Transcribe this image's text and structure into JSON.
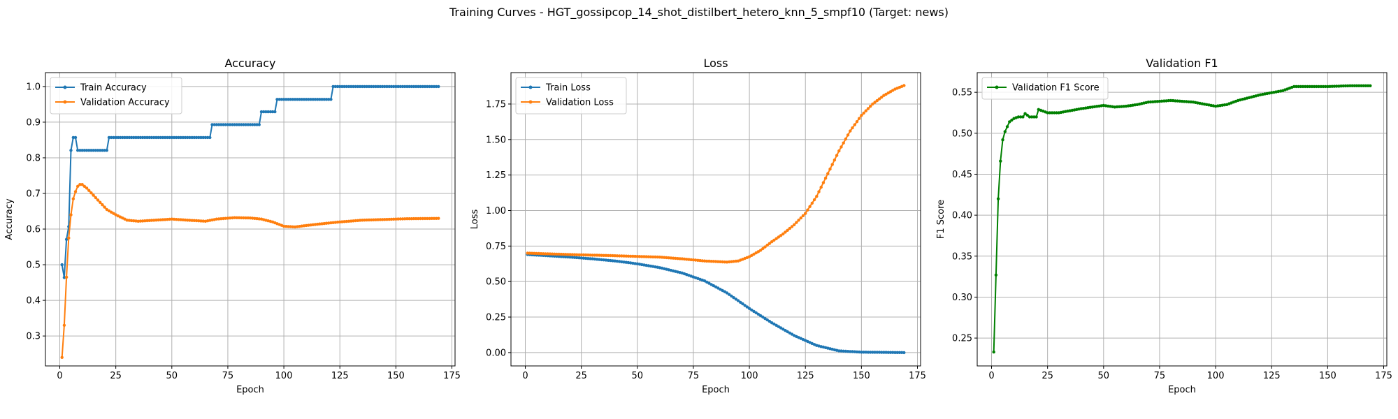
{
  "suptitle": "Training Curves - HGT_gossipcop_14_shot_distilbert_hetero_knn_5_smpf10 (Target: news)",
  "colors": {
    "blue": "#1f77b4",
    "orange": "#ff7f0e",
    "green": "#008000",
    "grid": "#b0b0b0"
  },
  "chart_data": [
    {
      "type": "line",
      "title": "Accuracy",
      "xlabel": "Epoch",
      "ylabel": "Accuracy",
      "xlim": [
        -6.4,
        176.4
      ],
      "ylim": [
        0.216,
        1.039
      ],
      "xticks": [
        0,
        25,
        50,
        75,
        100,
        125,
        150,
        175
      ],
      "yticks": [
        0.3,
        0.4,
        0.5,
        0.6,
        0.7,
        0.8,
        0.9,
        1.0
      ],
      "ytick_labels": [
        "0.3",
        "0.4",
        "0.5",
        "0.6",
        "0.7",
        "0.8",
        "0.9",
        "1.0"
      ],
      "grid": true,
      "legend": "upper left",
      "series": [
        {
          "name": "Train Accuracy",
          "color": "#1f77b4",
          "segments": [
            [
              1,
              0.5
            ],
            [
              2,
              0.464
            ],
            [
              3,
              0.571
            ],
            [
              4,
              0.607
            ],
            [
              5,
              0.821
            ],
            [
              6,
              0.857
            ],
            [
              7,
              0.857
            ],
            [
              8,
              0.821
            ],
            [
              21,
              0.821
            ],
            [
              22,
              0.857
            ],
            [
              67,
              0.857
            ],
            [
              68,
              0.893
            ],
            [
              89,
              0.893
            ],
            [
              90,
              0.929
            ],
            [
              96,
              0.929
            ],
            [
              97,
              0.964
            ],
            [
              121,
              0.964
            ],
            [
              122,
              1.0
            ],
            [
              169,
              1.0
            ]
          ]
        },
        {
          "name": "Validation Accuracy",
          "color": "#ff7f0e",
          "segments": [
            [
              1,
              0.24
            ],
            [
              2,
              0.33
            ],
            [
              3,
              0.465
            ],
            [
              4,
              0.575
            ],
            [
              5,
              0.64
            ],
            [
              6,
              0.685
            ],
            [
              7,
              0.705
            ],
            [
              8,
              0.72
            ],
            [
              9,
              0.725
            ],
            [
              10,
              0.725
            ],
            [
              12,
              0.715
            ],
            [
              15,
              0.695
            ],
            [
              18,
              0.675
            ],
            [
              21,
              0.655
            ],
            [
              25,
              0.64
            ],
            [
              30,
              0.625
            ],
            [
              35,
              0.622
            ],
            [
              40,
              0.624
            ],
            [
              50,
              0.628
            ],
            [
              57,
              0.625
            ],
            [
              65,
              0.622
            ],
            [
              70,
              0.628
            ],
            [
              78,
              0.632
            ],
            [
              85,
              0.631
            ],
            [
              90,
              0.628
            ],
            [
              95,
              0.62
            ],
            [
              100,
              0.608
            ],
            [
              105,
              0.606
            ],
            [
              110,
              0.61
            ],
            [
              117,
              0.615
            ],
            [
              125,
              0.62
            ],
            [
              135,
              0.625
            ],
            [
              145,
              0.627
            ],
            [
              155,
              0.629
            ],
            [
              169,
              0.63
            ]
          ]
        }
      ]
    },
    {
      "type": "line",
      "title": "Loss",
      "xlabel": "Epoch",
      "ylabel": "Loss",
      "xlim": [
        -6.4,
        176.4
      ],
      "ylim": [
        -0.094,
        1.971
      ],
      "xticks": [
        0,
        25,
        50,
        75,
        100,
        125,
        150,
        175
      ],
      "yticks": [
        0.0,
        0.25,
        0.5,
        0.75,
        1.0,
        1.25,
        1.5,
        1.75
      ],
      "ytick_labels": [
        "0.00",
        "0.25",
        "0.50",
        "0.75",
        "1.00",
        "1.25",
        "1.50",
        "1.75"
      ],
      "grid": true,
      "legend": "upper left",
      "series": [
        {
          "name": "Train Loss",
          "color": "#1f77b4",
          "segments": [
            [
              1,
              0.69
            ],
            [
              10,
              0.682
            ],
            [
              20,
              0.672
            ],
            [
              30,
              0.66
            ],
            [
              40,
              0.645
            ],
            [
              50,
              0.625
            ],
            [
              60,
              0.598
            ],
            [
              70,
              0.56
            ],
            [
              80,
              0.505
            ],
            [
              90,
              0.42
            ],
            [
              100,
              0.31
            ],
            [
              110,
              0.21
            ],
            [
              120,
              0.12
            ],
            [
              130,
              0.05
            ],
            [
              140,
              0.012
            ],
            [
              150,
              0.003
            ],
            [
              169,
              0.0
            ]
          ]
        },
        {
          "name": "Validation Loss",
          "color": "#ff7f0e",
          "segments": [
            [
              1,
              0.7
            ],
            [
              20,
              0.69
            ],
            [
              40,
              0.682
            ],
            [
              60,
              0.672
            ],
            [
              70,
              0.66
            ],
            [
              80,
              0.645
            ],
            [
              90,
              0.637
            ],
            [
              95,
              0.645
            ],
            [
              100,
              0.675
            ],
            [
              105,
              0.72
            ],
            [
              110,
              0.78
            ],
            [
              115,
              0.835
            ],
            [
              120,
              0.9
            ],
            [
              125,
              0.98
            ],
            [
              130,
              1.1
            ],
            [
              135,
              1.26
            ],
            [
              140,
              1.42
            ],
            [
              145,
              1.56
            ],
            [
              150,
              1.67
            ],
            [
              155,
              1.75
            ],
            [
              160,
              1.81
            ],
            [
              165,
              1.855
            ],
            [
              169,
              1.88
            ]
          ]
        }
      ]
    },
    {
      "type": "line",
      "title": "Validation F1",
      "xlabel": "Epoch",
      "ylabel": "F1 Score",
      "xlim": [
        -6.4,
        176.4
      ],
      "ylim": [
        0.216,
        0.574
      ],
      "xticks": [
        0,
        25,
        50,
        75,
        100,
        125,
        150,
        175
      ],
      "yticks": [
        0.25,
        0.3,
        0.35,
        0.4,
        0.45,
        0.5,
        0.55
      ],
      "ytick_labels": [
        "0.25",
        "0.30",
        "0.35",
        "0.40",
        "0.45",
        "0.50",
        "0.55"
      ],
      "grid": true,
      "legend": "upper left",
      "series": [
        {
          "name": "Validation F1 Score",
          "color": "#008000",
          "segments": [
            [
              1,
              0.233
            ],
            [
              2,
              0.327
            ],
            [
              3,
              0.42
            ],
            [
              4,
              0.466
            ],
            [
              5,
              0.492
            ],
            [
              6,
              0.502
            ],
            [
              7,
              0.508
            ],
            [
              8,
              0.514
            ],
            [
              10,
              0.518
            ],
            [
              12,
              0.52
            ],
            [
              14,
              0.52
            ],
            [
              15,
              0.524
            ],
            [
              17,
              0.52
            ],
            [
              20,
              0.52
            ],
            [
              21,
              0.529
            ],
            [
              25,
              0.525
            ],
            [
              30,
              0.525
            ],
            [
              40,
              0.53
            ],
            [
              50,
              0.534
            ],
            [
              55,
              0.532
            ],
            [
              60,
              0.533
            ],
            [
              65,
              0.535
            ],
            [
              70,
              0.538
            ],
            [
              80,
              0.54
            ],
            [
              90,
              0.538
            ],
            [
              100,
              0.533
            ],
            [
              105,
              0.535
            ],
            [
              110,
              0.54
            ],
            [
              120,
              0.547
            ],
            [
              130,
              0.552
            ],
            [
              135,
              0.557
            ],
            [
              140,
              0.557
            ],
            [
              150,
              0.557
            ],
            [
              160,
              0.558
            ],
            [
              169,
              0.558
            ]
          ]
        }
      ]
    }
  ]
}
